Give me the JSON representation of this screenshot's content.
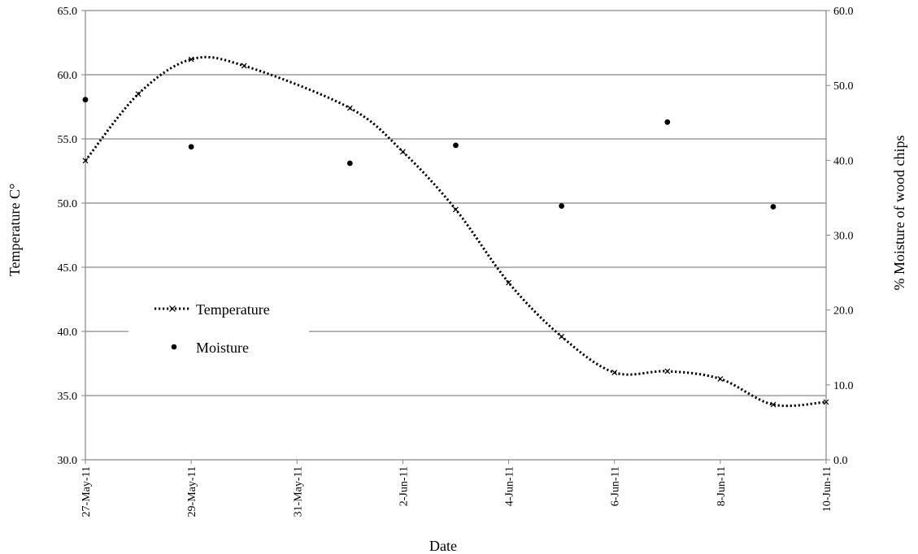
{
  "chart_data": {
    "type": "line",
    "x_type": "date",
    "xlabel": "Date",
    "ylabel": "Temperature C°",
    "y2label": "% Moisture of wood chips",
    "x_ticks": [
      "27-May-11",
      "29-May-11",
      "31-May-11",
      "2-Jun-11",
      "4-Jun-11",
      "6-Jun-11",
      "8-Jun-11",
      "10-Jun-11"
    ],
    "xlim": [
      "2011-05-27",
      "2011-06-10"
    ],
    "ylim": [
      30.0,
      65.0
    ],
    "y_ticks": [
      "30.0",
      "35.0",
      "40.0",
      "45.0",
      "50.0",
      "55.0",
      "60.0",
      "65.0"
    ],
    "y2lim": [
      0.0,
      60.0
    ],
    "y2_ticks": [
      "0.0",
      "10.0",
      "20.0",
      "30.0",
      "40.0",
      "50.0",
      "60.0"
    ],
    "grid": "horizontal",
    "legend_position": "left-center",
    "series": [
      {
        "name": "Temperature",
        "axis": "left",
        "style": "dotted line with x markers",
        "color": "#000000",
        "x": [
          "2011-05-27",
          "2011-05-28",
          "2011-05-29",
          "2011-05-30",
          "2011-06-01",
          "2011-06-02",
          "2011-06-03",
          "2011-06-04",
          "2011-06-05",
          "2011-06-06",
          "2011-06-07",
          "2011-06-08",
          "2011-06-09",
          "2011-06-10"
        ],
        "values": [
          53.3,
          58.5,
          61.2,
          60.7,
          57.4,
          54.0,
          49.5,
          43.8,
          39.6,
          36.8,
          36.9,
          36.3,
          34.3,
          34.5
        ]
      },
      {
        "name": "Moisture",
        "axis": "right",
        "style": "markers only",
        "color": "#000000",
        "x": [
          "2011-05-27",
          "2011-05-29",
          "2011-06-01",
          "2011-06-03",
          "2011-06-05",
          "2011-06-07",
          "2011-06-09"
        ],
        "values": [
          48.1,
          41.8,
          39.6,
          42.0,
          33.9,
          45.1,
          33.8
        ]
      }
    ]
  }
}
